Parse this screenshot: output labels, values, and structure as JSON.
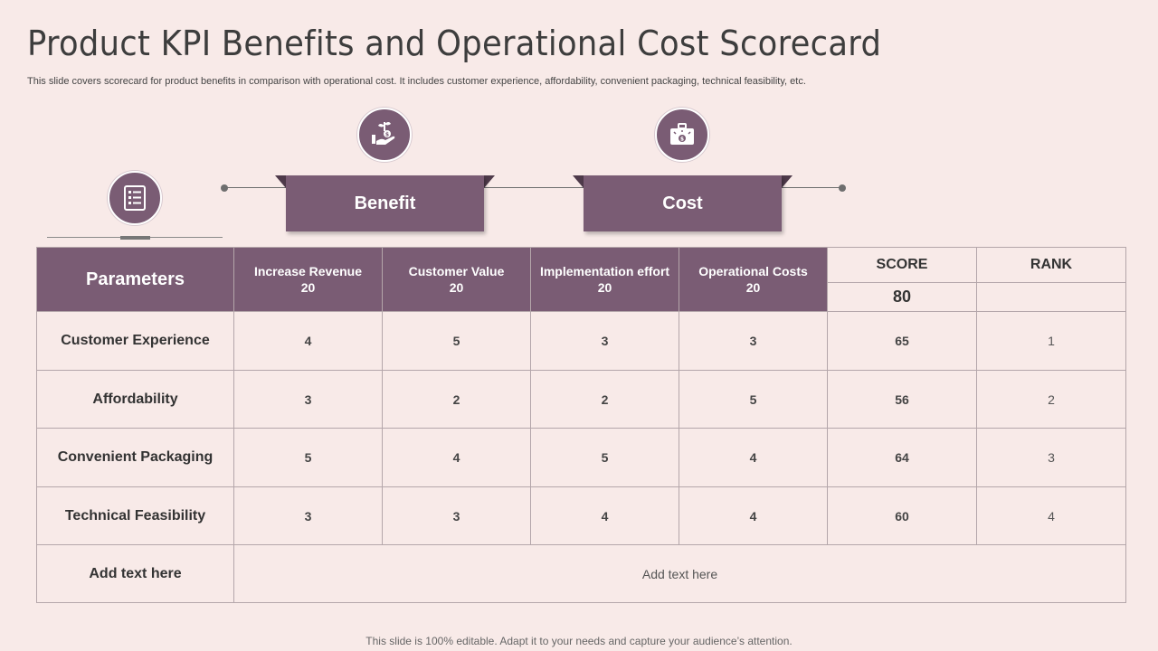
{
  "title": "Product KPI Benefits and Operational Cost Scorecard",
  "subtitle": "This slide covers scorecard for product benefits in comparison with operational cost. It includes customer experience, affordability, convenient packaging, technical feasibility, etc.",
  "banners": {
    "benefit": "Benefit",
    "cost": "Cost"
  },
  "icons": {
    "parameters": "checklist-icon",
    "benefit": "money-plant-hand-icon",
    "cost": "briefcase-money-icon"
  },
  "accent_color": "#7a5c74",
  "table": {
    "param_header": "Parameters",
    "columns": [
      {
        "name": "Increase Revenue",
        "weight": "20"
      },
      {
        "name": "Customer Value",
        "weight": "20"
      },
      {
        "name": "Implementation effort",
        "weight": "20"
      },
      {
        "name": "Operational Costs",
        "weight": "20"
      }
    ],
    "score_header": "SCORE",
    "rank_header": "RANK",
    "total_score": "80",
    "rows": [
      {
        "label": "Customer Experience",
        "values": [
          "4",
          "5",
          "3",
          "3"
        ],
        "score": "65",
        "rank": "1"
      },
      {
        "label": "Affordability",
        "values": [
          "3",
          "2",
          "2",
          "5"
        ],
        "score": "56",
        "rank": "2"
      },
      {
        "label": "Convenient Packaging",
        "values": [
          "5",
          "4",
          "5",
          "4"
        ],
        "score": "64",
        "rank": "3"
      },
      {
        "label": "Technical Feasibility",
        "values": [
          "3",
          "3",
          "4",
          "4"
        ],
        "score": "60",
        "rank": "4"
      }
    ],
    "footer_label": "Add text here",
    "footer_text": "Add text here"
  },
  "footer": "This slide is 100% editable. Adapt it to your needs and capture your audience’s attention."
}
